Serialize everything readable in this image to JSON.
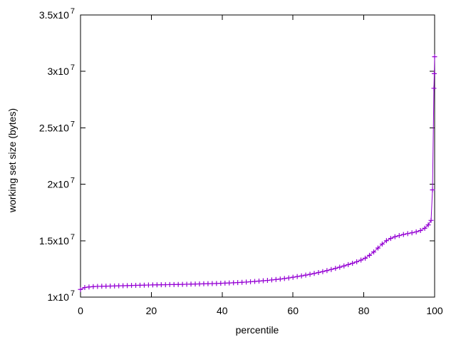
{
  "figure": {
    "background": "#ffffff",
    "axis_color": "#000000",
    "text_color": "#000000"
  },
  "chart_data": {
    "type": "line",
    "title": "",
    "xlabel": "percentile",
    "ylabel": "working set size (bytes)",
    "xlim": [
      0,
      100
    ],
    "ylim": [
      10000000,
      35000000
    ],
    "grid": false,
    "legend": "none",
    "x_ticks": [
      {
        "value": 0,
        "label": "0"
      },
      {
        "value": 20,
        "label": "20"
      },
      {
        "value": 40,
        "label": "40"
      },
      {
        "value": 60,
        "label": "60"
      },
      {
        "value": 80,
        "label": "80"
      },
      {
        "value": 100,
        "label": "100"
      }
    ],
    "y_ticks": [
      {
        "value": 10000000,
        "mantissa": "1x10",
        "exponent": "7"
      },
      {
        "value": 15000000,
        "mantissa": "1.5x10",
        "exponent": "7"
      },
      {
        "value": 20000000,
        "mantissa": "2x10",
        "exponent": "7"
      },
      {
        "value": 25000000,
        "mantissa": "2.5x10",
        "exponent": "7"
      },
      {
        "value": 30000000,
        "mantissa": "3x10",
        "exponent": "7"
      },
      {
        "value": 35000000,
        "mantissa": "3.5x10",
        "exponent": "7"
      }
    ],
    "series": [
      {
        "name": "working set size",
        "color": "#9400d3",
        "marker": "plus",
        "points": [
          [
            0,
            10680000
          ],
          [
            1.2,
            10850000
          ],
          [
            2.4,
            10900000
          ],
          [
            3.6,
            10930000
          ],
          [
            4.8,
            10950000
          ],
          [
            6,
            10960000
          ],
          [
            7.2,
            10970000
          ],
          [
            8.4,
            10980000
          ],
          [
            9.6,
            10990000
          ],
          [
            10.8,
            11000000
          ],
          [
            12,
            11010000
          ],
          [
            13.2,
            11020000
          ],
          [
            14.4,
            11030000
          ],
          [
            15.6,
            11040000
          ],
          [
            16.8,
            11050000
          ],
          [
            18,
            11060000
          ],
          [
            19.2,
            11070000
          ],
          [
            20.4,
            11080000
          ],
          [
            21.6,
            11090000
          ],
          [
            22.8,
            11095000
          ],
          [
            24,
            11100000
          ],
          [
            25.2,
            11110000
          ],
          [
            26.4,
            11115000
          ],
          [
            27.6,
            11120000
          ],
          [
            28.8,
            11130000
          ],
          [
            30,
            11140000
          ],
          [
            31.2,
            11150000
          ],
          [
            32.4,
            11160000
          ],
          [
            33.6,
            11170000
          ],
          [
            34.8,
            11180000
          ],
          [
            36,
            11190000
          ],
          [
            37.2,
            11200000
          ],
          [
            38.4,
            11210000
          ],
          [
            39.6,
            11225000
          ],
          [
            40.8,
            11240000
          ],
          [
            42,
            11255000
          ],
          [
            43.2,
            11270000
          ],
          [
            44.4,
            11290000
          ],
          [
            45.6,
            11310000
          ],
          [
            46.8,
            11330000
          ],
          [
            48,
            11360000
          ],
          [
            49.2,
            11390000
          ],
          [
            50.4,
            11420000
          ],
          [
            51.6,
            11450000
          ],
          [
            52.8,
            11480000
          ],
          [
            54,
            11520000
          ],
          [
            55.2,
            11560000
          ],
          [
            56.4,
            11600000
          ],
          [
            57.6,
            11650000
          ],
          [
            58.8,
            11700000
          ],
          [
            60,
            11760000
          ],
          [
            61.2,
            11820000
          ],
          [
            62.4,
            11880000
          ],
          [
            63.6,
            11950000
          ],
          [
            64.8,
            12020000
          ],
          [
            66,
            12100000
          ],
          [
            67.2,
            12180000
          ],
          [
            68.4,
            12260000
          ],
          [
            69.6,
            12350000
          ],
          [
            70.8,
            12450000
          ],
          [
            72,
            12550000
          ],
          [
            73.2,
            12650000
          ],
          [
            74.4,
            12760000
          ],
          [
            75.6,
            12880000
          ],
          [
            76.8,
            13000000
          ],
          [
            78,
            13130000
          ],
          [
            79.2,
            13280000
          ],
          [
            80.4,
            13450000
          ],
          [
            81.6,
            13700000
          ],
          [
            82.8,
            14000000
          ],
          [
            84,
            14350000
          ],
          [
            85.2,
            14700000
          ],
          [
            86.4,
            15000000
          ],
          [
            87.6,
            15200000
          ],
          [
            88.8,
            15350000
          ],
          [
            90,
            15450000
          ],
          [
            91.2,
            15550000
          ],
          [
            92.4,
            15630000
          ],
          [
            93.6,
            15700000
          ],
          [
            94.8,
            15780000
          ],
          [
            96,
            15900000
          ],
          [
            97.2,
            16100000
          ],
          [
            98.2,
            16400000
          ],
          [
            99,
            16800000
          ],
          [
            99.4,
            19500000
          ],
          [
            99.8,
            28500000
          ],
          [
            99.9,
            29800000
          ],
          [
            100,
            31300000
          ]
        ]
      }
    ]
  }
}
